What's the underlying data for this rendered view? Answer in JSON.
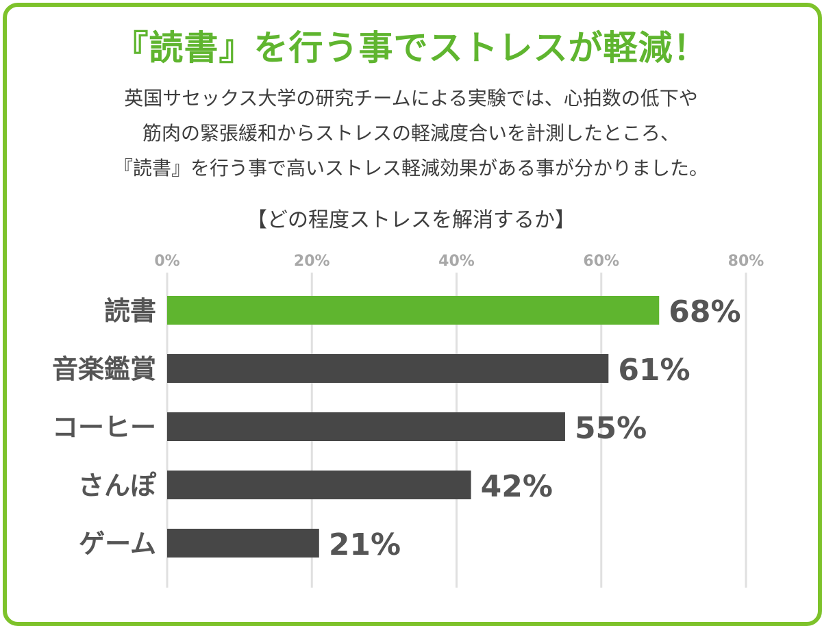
{
  "headline": "『読書』を行う事でストレスが軽減！",
  "description": [
    "英国サセックス大学の研究チームによる実験では、心拍数の低下や",
    "筋肉の緊張緩和からストレスの軽減度合いを計測したところ、",
    "『読書』を行う事で高いストレス軽減効果がある事が分かりました。"
  ],
  "chart_data": {
    "type": "bar",
    "orientation": "horizontal",
    "title": "【どの程度ストレスを解消するか】",
    "categories": [
      "読書",
      "音楽鑑賞",
      "コーヒー",
      "さんぽ",
      "ゲーム"
    ],
    "values": [
      68,
      61,
      55,
      42,
      21
    ],
    "value_labels": [
      "68%",
      "61%",
      "55%",
      "42%",
      "21%"
    ],
    "xlim": [
      0,
      80
    ],
    "ticks": [
      0,
      20,
      40,
      60,
      80
    ],
    "tick_labels": [
      "0%",
      "20%",
      "40%",
      "60%",
      "80%"
    ],
    "grid": true,
    "colors": {
      "highlight": "#5fb52f",
      "default": "#474747",
      "highlight_text": "#5fb52f",
      "default_text": "#555555",
      "grid": "#e0e0e0",
      "tick_text": "#a8a8a8",
      "frame": "#7dc22a"
    },
    "highlight_index": 0
  }
}
